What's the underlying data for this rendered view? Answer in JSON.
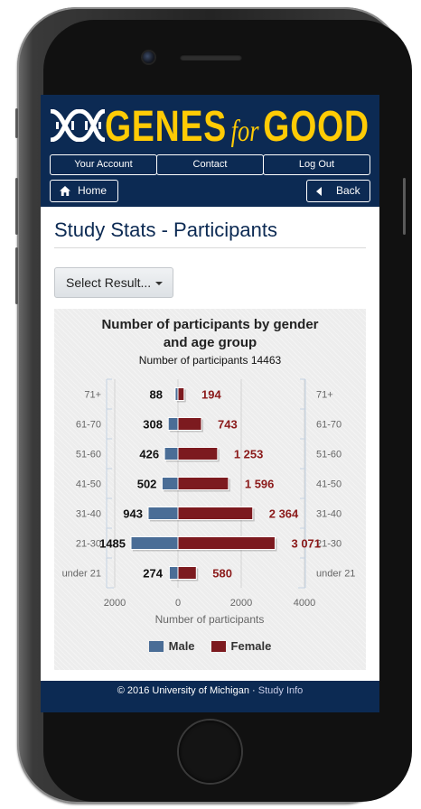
{
  "brand": {
    "logo_text_1": "GENES",
    "logo_text_2": "for",
    "logo_text_3": "GOOD",
    "accent": "#ffcb05",
    "navy": "#0c2a53"
  },
  "nav": {
    "items": [
      {
        "label": "Your Account"
      },
      {
        "label": "Contact"
      },
      {
        "label": "Log Out"
      }
    ],
    "home_label": "Home",
    "home_icon": "home-icon",
    "back_label": "Back",
    "back_icon": "caret-left-icon"
  },
  "page": {
    "title": "Study Stats - Participants",
    "select_label": "Select Result..."
  },
  "chart_data": {
    "type": "bar",
    "orientation": "horizontal",
    "title": "Number of participants by gender and age group",
    "subtitle": "Number of participants 14463",
    "xlabel": "Number of participants",
    "ylabel": "",
    "categories": [
      "71+",
      "61-70",
      "51-60",
      "41-50",
      "31-40",
      "21-30",
      "under 21"
    ],
    "series": [
      {
        "name": "Male",
        "color": "#4a6d96",
        "values": [
          88,
          308,
          426,
          502,
          943,
          1485,
          274
        ],
        "labels": [
          "88",
          "308",
          "426",
          "502",
          "943",
          "1485",
          "274"
        ]
      },
      {
        "name": "Female",
        "color": "#7c1a1f",
        "values": [
          194,
          743,
          1253,
          1596,
          2364,
          3071,
          580
        ],
        "labels": [
          "194",
          "743",
          "1 253",
          "1 596",
          "2 364",
          "3 071",
          "580"
        ]
      }
    ],
    "x_ticks": [
      "2000",
      "0",
      "2000",
      "4000"
    ],
    "xlim": [
      -2000,
      4000
    ],
    "grid": true,
    "legend_position": "bottom"
  },
  "footer": {
    "copyright": "© 2016 University of Michigan",
    "separator": " · ",
    "link": "Study Info"
  }
}
